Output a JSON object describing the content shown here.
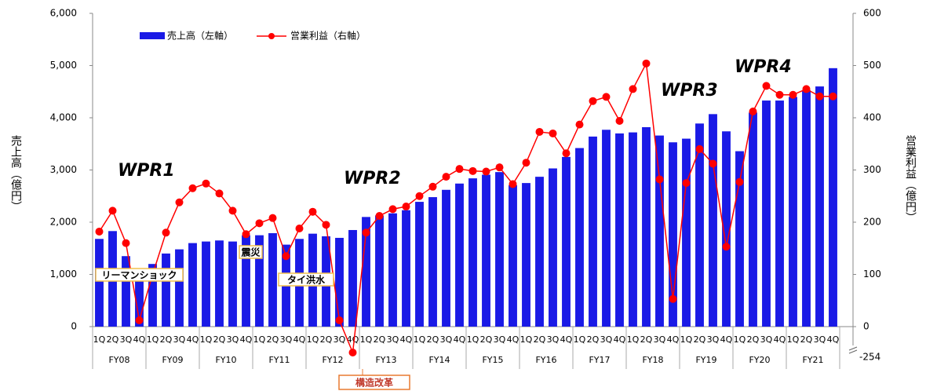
{
  "chart_data": {
    "type": "bar_line",
    "legend": [
      "売上高（左軸）",
      "営業利益（右軸）"
    ],
    "ylabel": "売上高（億円）",
    "y2label": "営業利益（億円）",
    "categories": [
      "1Q",
      "2Q",
      "3Q",
      "4Q",
      "1Q",
      "2Q",
      "3Q",
      "4Q",
      "1Q",
      "2Q",
      "3Q",
      "4Q",
      "1Q",
      "2Q",
      "3Q",
      "4Q",
      "1Q",
      "2Q",
      "3Q",
      "4Q",
      "1Q",
      "2Q",
      "3Q",
      "4Q",
      "1Q",
      "2Q",
      "3Q",
      "4Q",
      "1Q",
      "2Q",
      "3Q",
      "4Q",
      "1Q",
      "2Q",
      "3Q",
      "4Q",
      "1Q",
      "2Q",
      "3Q",
      "4Q",
      "1Q",
      "2Q",
      "3Q",
      "4Q",
      "1Q",
      "2Q",
      "3Q",
      "4Q",
      "1Q",
      "2Q",
      "3Q",
      "4Q",
      "1Q",
      "2Q",
      "3Q",
      "4Q"
    ],
    "groups": [
      "FY08",
      "FY09",
      "FY10",
      "FY11",
      "FY12",
      "FY13",
      "FY14",
      "FY15",
      "FY16",
      "FY17",
      "FY18",
      "FY19",
      "FY20",
      "FY21"
    ],
    "series": [
      {
        "name": "売上高（左軸）",
        "color": "#1a1ae6",
        "values": [
          1680,
          1830,
          1350,
          980,
          1200,
          1400,
          1480,
          1600,
          1630,
          1650,
          1630,
          1750,
          1750,
          1790,
          1570,
          1680,
          1780,
          1730,
          1700,
          1850,
          2100,
          2130,
          2170,
          2230,
          2390,
          2480,
          2620,
          2740,
          2840,
          2910,
          2960,
          2710,
          2750,
          2870,
          3030,
          3250,
          3420,
          3640,
          3770,
          3700,
          3720,
          3820,
          3660,
          3530,
          3600,
          3890,
          4070,
          3740,
          3360,
          4100,
          4330,
          4330,
          4400,
          4530,
          4600,
          4950
        ]
      },
      {
        "name": "営業利益（右軸）",
        "color": "#ff0000",
        "axis": "y2",
        "values": [
          182,
          222,
          160,
          12,
          100,
          180,
          238,
          265,
          274,
          255,
          222,
          177,
          198,
          208,
          135,
          188,
          220,
          195,
          12,
          -254,
          180,
          212,
          225,
          230,
          250,
          268,
          287,
          302,
          298,
          297,
          305,
          273,
          314,
          373,
          370,
          332,
          387,
          432,
          440,
          394,
          455,
          504,
          282,
          53,
          275,
          340,
          312,
          153,
          277,
          412,
          461,
          444,
          444,
          455,
          441,
          441
        ],
        "value_labels": [
          null,
          null,
          null,
          null,
          null,
          null,
          null,
          null,
          null,
          null,
          null,
          null,
          null,
          null,
          null,
          null,
          null,
          null,
          null,
          "-254",
          null,
          null,
          null,
          null,
          null,
          null,
          null,
          null,
          null,
          null,
          null,
          null,
          null,
          null,
          null,
          null,
          null,
          null,
          null,
          null,
          null,
          null,
          null,
          null,
          null,
          null,
          null,
          null,
          null,
          null,
          null,
          null,
          null,
          null,
          null,
          null
        ]
      }
    ],
    "ylim": [
      0,
      6000
    ],
    "yticks": [
      0,
      {
        "value": 1000,
        "label": "1,000"
      },
      {
        "value": 2000,
        "label": "2,000"
      },
      {
        "value": 3000,
        "label": "3,000"
      },
      {
        "value": 4000,
        "label": "4,000"
      },
      {
        "value": 5000,
        "label": "5,000"
      },
      {
        "value": 6000,
        "label": "6,000"
      }
    ],
    "y2lim": [
      0,
      600
    ],
    "y2ticks": [
      0,
      100,
      200,
      300,
      400,
      500,
      600
    ],
    "annotations": [
      "WPR1",
      "WPR2",
      "WPR3",
      "WPR4",
      "リーマンショック",
      "震災",
      "タイ洪水",
      "構造改革"
    ]
  }
}
